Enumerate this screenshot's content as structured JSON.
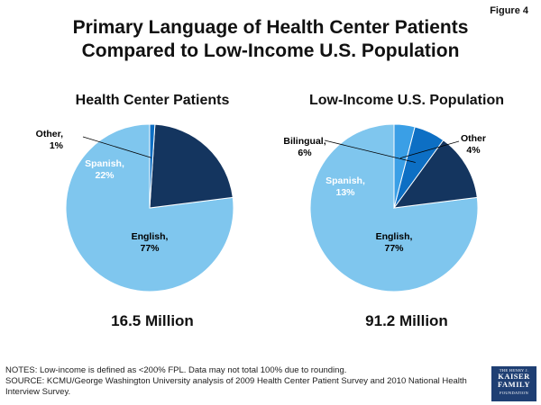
{
  "figure_label": "Figure 4",
  "title_line1": "Primary Language of Health Center Patients",
  "title_line2": "Compared to Low-Income U.S. Population",
  "chart_data": [
    {
      "type": "pie",
      "title": "Health Center Patients",
      "total_label": "16.5 Million",
      "slices": [
        {
          "name": "English",
          "value": 77,
          "label_line1": "English,",
          "label_line2": "77%",
          "color": "#7fc6ee",
          "text_color": "#000000"
        },
        {
          "name": "Spanish",
          "value": 22,
          "label_line1": "Spanish,",
          "label_line2": "22%",
          "color": "#14355f",
          "text_color": "#ffffff"
        },
        {
          "name": "Other",
          "value": 1,
          "label_line1": "Other,",
          "label_line2": "1%",
          "color": "#0d6fc4",
          "text_color": "#000000"
        }
      ]
    },
    {
      "type": "pie",
      "title": "Low-Income U.S. Population",
      "total_label": "91.2 Million",
      "slices": [
        {
          "name": "English",
          "value": 77,
          "label_line1": "English,",
          "label_line2": "77%",
          "color": "#7fc6ee",
          "text_color": "#000000"
        },
        {
          "name": "Spanish",
          "value": 13,
          "label_line1": "Spanish,",
          "label_line2": "13%",
          "color": "#14355f",
          "text_color": "#ffffff"
        },
        {
          "name": "Bilingual",
          "value": 6,
          "label_line1": "Bilingual,",
          "label_line2": "6%",
          "color": "#0d6fc4",
          "text_color": "#000000"
        },
        {
          "name": "Other",
          "value": 4,
          "label_line1": "Other",
          "label_line2": "4%",
          "color": "#3a9fe6",
          "text_color": "#000000"
        }
      ]
    }
  ],
  "notes_line1": "NOTES: Low-income is defined as <200% FPL.  Data may not total 100% due to rounding.",
  "notes_line2": "SOURCE: KCMU/George Washington University analysis of 2009 Health Center Patient Survey and 2010 National Health Interview Survey.",
  "logo": {
    "line1": "THE HENRY J.",
    "line2": "KAISER",
    "line3": "FAMILY",
    "line4": "FOUNDATION"
  }
}
